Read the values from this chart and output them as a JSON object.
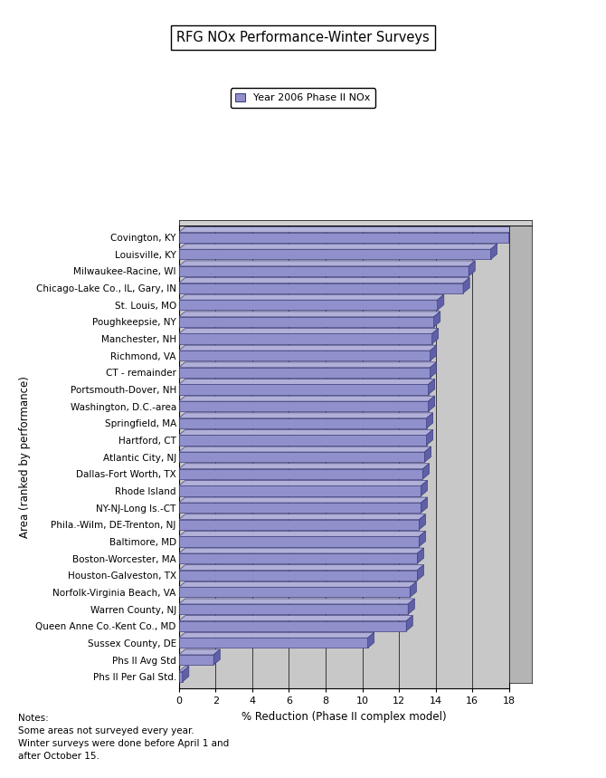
{
  "title": "RFG NOx Performance-Winter Surveys",
  "legend_label": "Year 2006 Phase II NOx",
  "xlabel": "% Reduction (Phase II complex model)",
  "ylabel": "Area (ranked by performance)",
  "categories": [
    "Phs II Per Gal Std.",
    "Phs II Avg Std",
    "Sussex County, DE",
    "Queen Anne Co.-Kent Co., MD",
    "Warren County, NJ",
    "Norfolk-Virginia Beach, VA",
    "Houston-Galveston, TX",
    "Boston-Worcester, MA",
    "Baltimore, MD",
    "Phila.-Wilm, DE-Trenton, NJ",
    "NY-NJ-Long Is.-CT",
    "Rhode Island",
    "Dallas-Fort Worth, TX",
    "Atlantic City, NJ",
    "Hartford, CT",
    "Springfield, MA",
    "Washington, D.C.-area",
    "Portsmouth-Dover, NH",
    "CT - remainder",
    "Richmond, VA",
    "Manchester, NH",
    "Poughkeepsie, NY",
    "St. Louis, MO",
    "Chicago-Lake Co., IL, Gary, IN",
    "Milwaukee-Racine, WI",
    "Louisville, KY",
    "Covington, KY"
  ],
  "values": [
    0.2,
    1.9,
    10.3,
    12.4,
    12.5,
    12.6,
    13.0,
    13.0,
    13.1,
    13.1,
    13.2,
    13.2,
    13.3,
    13.4,
    13.5,
    13.5,
    13.6,
    13.6,
    13.7,
    13.7,
    13.8,
    13.9,
    14.1,
    15.5,
    15.8,
    17.0,
    18.0
  ],
  "bar_color": "#9090cc",
  "bar_top_color": "#b0b0d8",
  "bar_side_color": "#6060a8",
  "bar_edge_color": "#404080",
  "bg_color": "#c8c8c8",
  "right_wall_color": "#b4b4b4",
  "top_wall_color": "#d0d0d0",
  "xlim": [
    0,
    18
  ],
  "xticks": [
    0,
    2,
    4,
    6,
    8,
    10,
    12,
    14,
    16,
    18
  ],
  "notes": "Notes:\nSome areas not surveyed every year.\nWinter surveys were done before April 1 and\nafter October 15."
}
